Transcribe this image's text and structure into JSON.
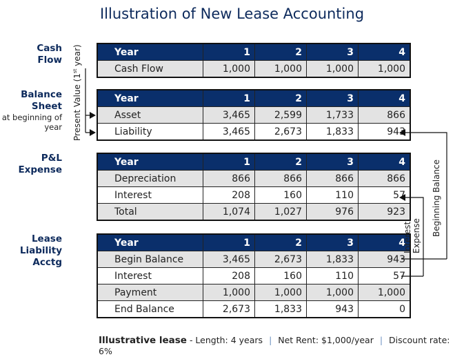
{
  "title": "Illustration of New Lease Accounting",
  "sections": {
    "cash_flow": "Cash Flow",
    "balance_sheet": "Balance Sheet",
    "balance_sheet_sub": "at beginning of year",
    "pl_expense": "P&L Expense",
    "lease_liability": "Lease Liability Acctg"
  },
  "annotations": {
    "present_value": "Present Value (1st year)",
    "beginning_balance": "Beginning Balance",
    "interest_expense": "Interest Expense"
  },
  "colors": {
    "header": "#0a2f6b",
    "shaded_row": "#e3e3e3",
    "title": "#0d2a5c"
  },
  "tables": [
    {
      "header": [
        "Year",
        "1",
        "2",
        "3",
        "4"
      ],
      "rows": [
        [
          "Cash Flow",
          "1,000",
          "1,000",
          "1,000",
          "1,000"
        ]
      ]
    },
    {
      "header": [
        "Year",
        "1",
        "2",
        "3",
        "4"
      ],
      "rows": [
        [
          "Asset",
          "3,465",
          "2,599",
          "1,733",
          "866"
        ],
        [
          "Liability",
          "3,465",
          "2,673",
          "1,833",
          "943"
        ]
      ]
    },
    {
      "header": [
        "Year",
        "1",
        "2",
        "3",
        "4"
      ],
      "rows": [
        [
          "Depreciation",
          "866",
          "866",
          "866",
          "866"
        ],
        [
          "Interest",
          "208",
          "160",
          "110",
          "57"
        ],
        [
          "Total",
          "1,074",
          "1,027",
          "976",
          "923"
        ]
      ]
    },
    {
      "header": [
        "Year",
        "1",
        "2",
        "3",
        "4"
      ],
      "rows": [
        [
          "Begin Balance",
          "3,465",
          "2,673",
          "1,833",
          "943"
        ],
        [
          "Interest",
          "208",
          "160",
          "110",
          "57"
        ],
        [
          "Payment",
          "1,000",
          "1,000",
          "1,000",
          "1,000"
        ],
        [
          "End Balance",
          "2,673",
          "1,833",
          "943",
          "0"
        ]
      ]
    }
  ],
  "footer": {
    "lead": "Illustrative lease",
    "length": "- Length: 4 years",
    "rent": "Net Rent: $1,000/year",
    "discount": "Discount rate: 6%",
    "separator": "|"
  }
}
